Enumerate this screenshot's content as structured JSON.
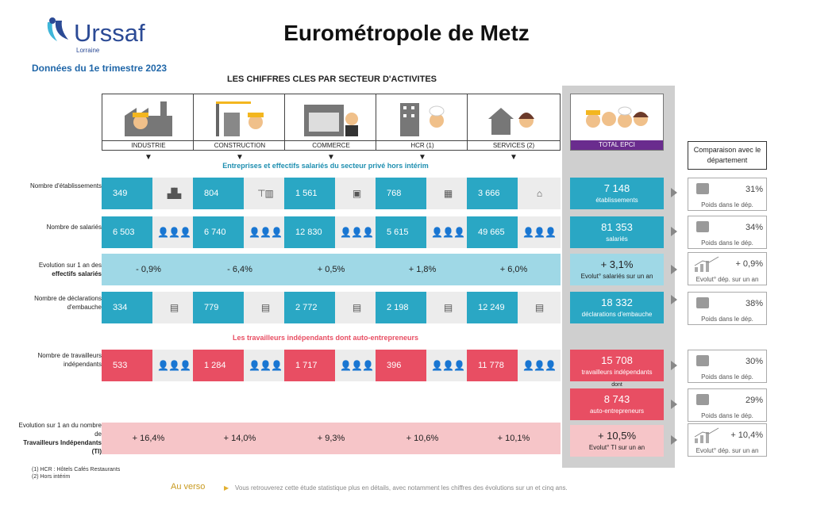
{
  "header": {
    "logo_name": "Urssaf",
    "logo_region": "Lorraine",
    "title": "Eurométropole de Metz",
    "subtitle": "Données du 1e trimestre 2023",
    "section_title": "LES CHIFFRES CLES PAR SECTEUR D'ACTIVITES"
  },
  "sectors": [
    "INDUSTRIE",
    "CONSTRUCTION",
    "COMMERCE",
    "HCR (1)",
    "SERVICES (2)"
  ],
  "total_label": "TOTAL EPCI",
  "comparison_head": "Comparaison avec le département",
  "band1": "Entreprises et effectifs salariés du secteur privé hors intérim",
  "band2": "Les travailleurs indépendants dont auto-entrepreneurs",
  "rows": {
    "etab": {
      "label": "Nombre d'établissements",
      "values": [
        "349",
        "804",
        "1 561",
        "768",
        "3 666"
      ],
      "total": "7 148",
      "total_sub": "établissements",
      "cmp": "31%",
      "cmp_cap": "Poids dans le dép."
    },
    "sal": {
      "label": "Nombre de salariés",
      "values": [
        "6 503",
        "6 740",
        "12 830",
        "5 615",
        "49 665"
      ],
      "total": "81 353",
      "total_sub": "salariés",
      "cmp": "34%",
      "cmp_cap": "Poids dans le dép."
    },
    "evol": {
      "label1": "Evolution sur 1 an des",
      "label2": "effectifs salariés",
      "values": [
        "- 0,9%",
        "- 6,4%",
        "+ 0,5%",
        "+ 1,8%",
        "+ 6,0%"
      ],
      "total": "+ 3,1%",
      "total_sub": "Evolut° salariés sur un an",
      "cmp": "+ 0,9%",
      "cmp_cap": "Evolut° dép. sur un an"
    },
    "decl": {
      "label": "Nombre de déclarations d'embauche",
      "values": [
        "334",
        "779",
        "2 772",
        "2 198",
        "12 249"
      ],
      "total": "18 332",
      "total_sub": "déclarations d'embauche",
      "cmp": "38%",
      "cmp_cap": "Poids dans le dép."
    },
    "indep": {
      "label": "Nombre de travailleurs indépendants",
      "values": [
        "533",
        "1 284",
        "1 717",
        "396",
        "11 778"
      ],
      "total": "15 708",
      "total_sub": "travailleurs indépendants",
      "total_sub2": "dont",
      "cmp": "30%",
      "cmp_cap": "Poids dans le dép."
    },
    "auto": {
      "total": "8 743",
      "total_sub": "auto-entrepreneurs",
      "cmp": "29%",
      "cmp_cap": "Poids dans le dép."
    },
    "evolti": {
      "label1": "Evolution sur 1 an du nombre de",
      "label2": "Travailleurs Indépendants (TI)",
      "values": [
        "+ 16,4%",
        "+ 14,0%",
        "+ 9,3%",
        "+ 10,6%",
        "+ 10,1%"
      ],
      "total": "+ 10,5%",
      "total_sub": "Evolut° TI sur un an",
      "cmp": "+ 10,4%",
      "cmp_cap": "Evolut° dép. sur un an"
    }
  },
  "footnotes": [
    "(1) HCR : Hôtels Cafés Restaurants",
    "(2) Hors intérim"
  ],
  "verso": "Au verso",
  "verso_text": "Vous retrouverez cette étude statistique plus en détails, avec notamment les chiffres des évolutions sur un et cinq ans.",
  "colors": {
    "teal": "#2aa7c4",
    "light_teal": "#9fd8e6",
    "red": "#e84e63",
    "pink": "#f6c5c8",
    "purple": "#6a2c8e",
    "brand": "#2b4a95"
  }
}
